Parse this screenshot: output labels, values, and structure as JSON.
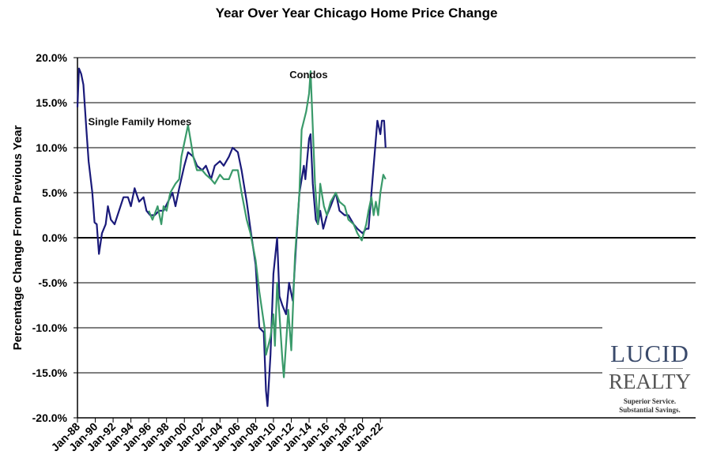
{
  "chart_data": {
    "type": "line",
    "title": "Year Over Year Chicago Home Price Change",
    "ylabel": "Percentage Change From Previous Year",
    "xlabel": "",
    "ylim": [
      -20,
      20
    ],
    "xlim": [
      "1988-01",
      "2022-08"
    ],
    "grid": true,
    "y_ticks": [
      "20.0%",
      "15.0%",
      "10.0%",
      "5.0%",
      "0.0%",
      "-5.0%",
      "-10.0%",
      "-15.0%",
      "-20.0%"
    ],
    "x_ticks": [
      "Jan-88",
      "Jan-90",
      "Jan-92",
      "Jan-94",
      "Jan-96",
      "Jan-98",
      "Jan-00",
      "Jan-02",
      "Jan-04",
      "Jan-06",
      "Jan-08",
      "Jan-10",
      "Jan-12",
      "Jan-14",
      "Jan-16",
      "Jan-18",
      "Jan-20",
      "Jan-22"
    ],
    "series": [
      {
        "name": "Single Family Homes",
        "color": "#1a1a7a",
        "label_pos": [
          1989.2,
          12.5
        ],
        "points": [
          [
            "1988-01",
            14.5
          ],
          [
            "1988-03",
            18.8
          ],
          [
            "1988-06",
            18.2
          ],
          [
            "1988-09",
            17
          ],
          [
            "1989-01",
            12
          ],
          [
            "1989-04",
            8.5
          ],
          [
            "1989-09",
            5
          ],
          [
            "1989-12",
            1.7
          ],
          [
            "1990-03",
            1.5
          ],
          [
            "1990-06",
            -1.8
          ],
          [
            "1990-10",
            0.5
          ],
          [
            "1991-03",
            1.5
          ],
          [
            "1991-06",
            3.5
          ],
          [
            "1991-10",
            2
          ],
          [
            "1992-03",
            1.5
          ],
          [
            "1992-09",
            3
          ],
          [
            "1993-03",
            4.5
          ],
          [
            "1993-09",
            4.5
          ],
          [
            "1994-01",
            3.5
          ],
          [
            "1994-06",
            5.5
          ],
          [
            "1994-12",
            4
          ],
          [
            "1995-06",
            4.5
          ],
          [
            "1995-10",
            3
          ],
          [
            "1996-03",
            2.5
          ],
          [
            "1996-09",
            2.5
          ],
          [
            "1997-03",
            3
          ],
          [
            "1997-09",
            3
          ],
          [
            "1998-03",
            4
          ],
          [
            "1998-09",
            5
          ],
          [
            "1999-01",
            3.5
          ],
          [
            "1999-06",
            5.5
          ],
          [
            "2000-01",
            8
          ],
          [
            "2000-06",
            9.5
          ],
          [
            "2001-01",
            9
          ],
          [
            "2001-06",
            8
          ],
          [
            "2002-01",
            7.5
          ],
          [
            "2002-06",
            8
          ],
          [
            "2003-01",
            6.5
          ],
          [
            "2003-06",
            8
          ],
          [
            "2004-01",
            8.5
          ],
          [
            "2004-06",
            8
          ],
          [
            "2005-01",
            9
          ],
          [
            "2005-06",
            10
          ],
          [
            "2006-01",
            9.5
          ],
          [
            "2006-06",
            7.5
          ],
          [
            "2007-01",
            4
          ],
          [
            "2007-06",
            1
          ],
          [
            "2008-01",
            -3
          ],
          [
            "2008-06",
            -10
          ],
          [
            "2008-12",
            -10.5
          ],
          [
            "2009-03",
            -17
          ],
          [
            "2009-05",
            -18.7
          ],
          [
            "2009-09",
            -13
          ],
          [
            "2010-01",
            -4
          ],
          [
            "2010-06",
            0
          ],
          [
            "2010-09",
            -6.5
          ],
          [
            "2011-01",
            -7.5
          ],
          [
            "2011-06",
            -8.5
          ],
          [
            "2011-10",
            -5
          ],
          [
            "2012-03",
            -7
          ],
          [
            "2012-07",
            -1.5
          ],
          [
            "2012-12",
            5
          ],
          [
            "2013-06",
            8
          ],
          [
            "2013-08",
            6.5
          ],
          [
            "2014-01",
            11
          ],
          [
            "2014-03",
            11.5
          ],
          [
            "2014-06",
            6
          ],
          [
            "2014-10",
            2
          ],
          [
            "2015-01",
            1.5
          ],
          [
            "2015-04",
            3
          ],
          [
            "2015-08",
            1
          ],
          [
            "2016-01",
            2.5
          ],
          [
            "2016-06",
            3.5
          ],
          [
            "2017-01",
            5
          ],
          [
            "2017-06",
            3
          ],
          [
            "2018-01",
            2.5
          ],
          [
            "2018-06",
            2.5
          ],
          [
            "2019-01",
            1.5
          ],
          [
            "2019-06",
            1
          ],
          [
            "2020-01",
            0.5
          ],
          [
            "2020-06",
            1
          ],
          [
            "2020-09",
            1
          ],
          [
            "2021-01",
            5
          ],
          [
            "2021-06",
            10
          ],
          [
            "2021-09",
            13
          ],
          [
            "2022-01",
            11.5
          ],
          [
            "2022-03",
            13
          ],
          [
            "2022-06",
            13
          ],
          [
            "2022-08",
            10
          ]
        ]
      },
      {
        "name": "Condos",
        "color": "#3a9a6a",
        "label_pos": [
          2011.8,
          17.7
        ],
        "points": [
          [
            "1996-01",
            3
          ],
          [
            "1996-06",
            2
          ],
          [
            "1997-01",
            3.5
          ],
          [
            "1997-06",
            1.5
          ],
          [
            "1997-09",
            3.5
          ],
          [
            "1998-01",
            3
          ],
          [
            "1998-06",
            5
          ],
          [
            "1999-01",
            6
          ],
          [
            "1999-06",
            6.5
          ],
          [
            "1999-09",
            9
          ],
          [
            "2000-06",
            12.5
          ],
          [
            "2000-09",
            11
          ],
          [
            "2001-01",
            9
          ],
          [
            "2001-06",
            7.5
          ],
          [
            "2002-01",
            7.5
          ],
          [
            "2002-06",
            7
          ],
          [
            "2003-01",
            6.5
          ],
          [
            "2003-06",
            6
          ],
          [
            "2004-01",
            7
          ],
          [
            "2004-06",
            6.5
          ],
          [
            "2005-01",
            6.5
          ],
          [
            "2005-06",
            7.5
          ],
          [
            "2006-01",
            7.5
          ],
          [
            "2006-06",
            5
          ],
          [
            "2007-01",
            2
          ],
          [
            "2007-06",
            0.5
          ],
          [
            "2008-01",
            -2.5
          ],
          [
            "2008-06",
            -6
          ],
          [
            "2009-01",
            -10
          ],
          [
            "2009-03",
            -13
          ],
          [
            "2009-09",
            -11
          ],
          [
            "2010-01",
            -8.5
          ],
          [
            "2010-03",
            -12
          ],
          [
            "2010-06",
            -5
          ],
          [
            "2010-09",
            -8.5
          ],
          [
            "2011-01",
            -13.5
          ],
          [
            "2011-03",
            -15.5
          ],
          [
            "2011-09",
            -8
          ],
          [
            "2012-01",
            -12.5
          ],
          [
            "2012-06",
            -2
          ],
          [
            "2012-12",
            5
          ],
          [
            "2013-03",
            12
          ],
          [
            "2013-09",
            14
          ],
          [
            "2014-01",
            16
          ],
          [
            "2014-03",
            18.5
          ],
          [
            "2014-09",
            6
          ],
          [
            "2015-01",
            1.5
          ],
          [
            "2015-04",
            6
          ],
          [
            "2015-09",
            3.5
          ],
          [
            "2016-01",
            2.5
          ],
          [
            "2016-06",
            4
          ],
          [
            "2017-01",
            5
          ],
          [
            "2017-06",
            4
          ],
          [
            "2018-01",
            3.5
          ],
          [
            "2018-06",
            2
          ],
          [
            "2019-01",
            1.5
          ],
          [
            "2019-06",
            0.5
          ],
          [
            "2019-12",
            -0.3
          ],
          [
            "2020-06",
            1.5
          ],
          [
            "2020-09",
            3
          ],
          [
            "2021-01",
            4.5
          ],
          [
            "2021-04",
            2.5
          ],
          [
            "2021-07",
            4
          ],
          [
            "2021-10",
            2.5
          ],
          [
            "2022-01",
            5
          ],
          [
            "2022-05",
            7
          ],
          [
            "2022-08",
            6.5
          ]
        ]
      }
    ]
  },
  "logo": {
    "line1": "LUCID",
    "line2": "REALTY",
    "tagline1": "Superior Service.",
    "tagline2": "Substantial Savings."
  }
}
